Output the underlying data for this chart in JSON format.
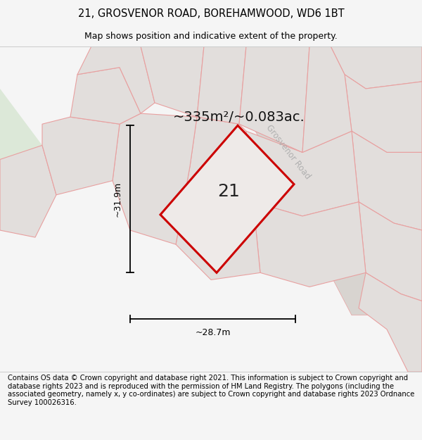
{
  "title": "21, GROSVENOR ROAD, BOREHAMWOOD, WD6 1BT",
  "subtitle": "Map shows position and indicative extent of the property.",
  "area_label": "~335m²/~0.083ac.",
  "number_label": "21",
  "width_label": "~28.7m",
  "height_label": "~31.9m",
  "road_label": "Grosvenor Road",
  "footer": "Contains OS data © Crown copyright and database right 2021. This information is subject to Crown copyright and database rights 2023 and is reproduced with the permission of HM Land Registry. The polygons (including the associated geometry, namely x, y co-ordinates) are subject to Crown copyright and database rights 2023 Ordnance Survey 100026316.",
  "bg_color": "#f5f5f5",
  "map_bg": "#ece8e6",
  "parcel_fill": "#e2dedc",
  "parcel_line": "#e8a0a0",
  "green_color": "#dce8d8",
  "plot_fill": "#eeeae8",
  "plot_outline": "#cc0000",
  "road_fill": "#d8d4d0",
  "title_fontsize": 10.5,
  "subtitle_fontsize": 9,
  "footer_fontsize": 7.2,
  "area_fontsize": 14,
  "number_fontsize": 18,
  "dim_fontsize": 9,
  "road_label_fontsize": 8.5,
  "road_label_color": "#b0b0b0",
  "road_label_rotation": -52
}
